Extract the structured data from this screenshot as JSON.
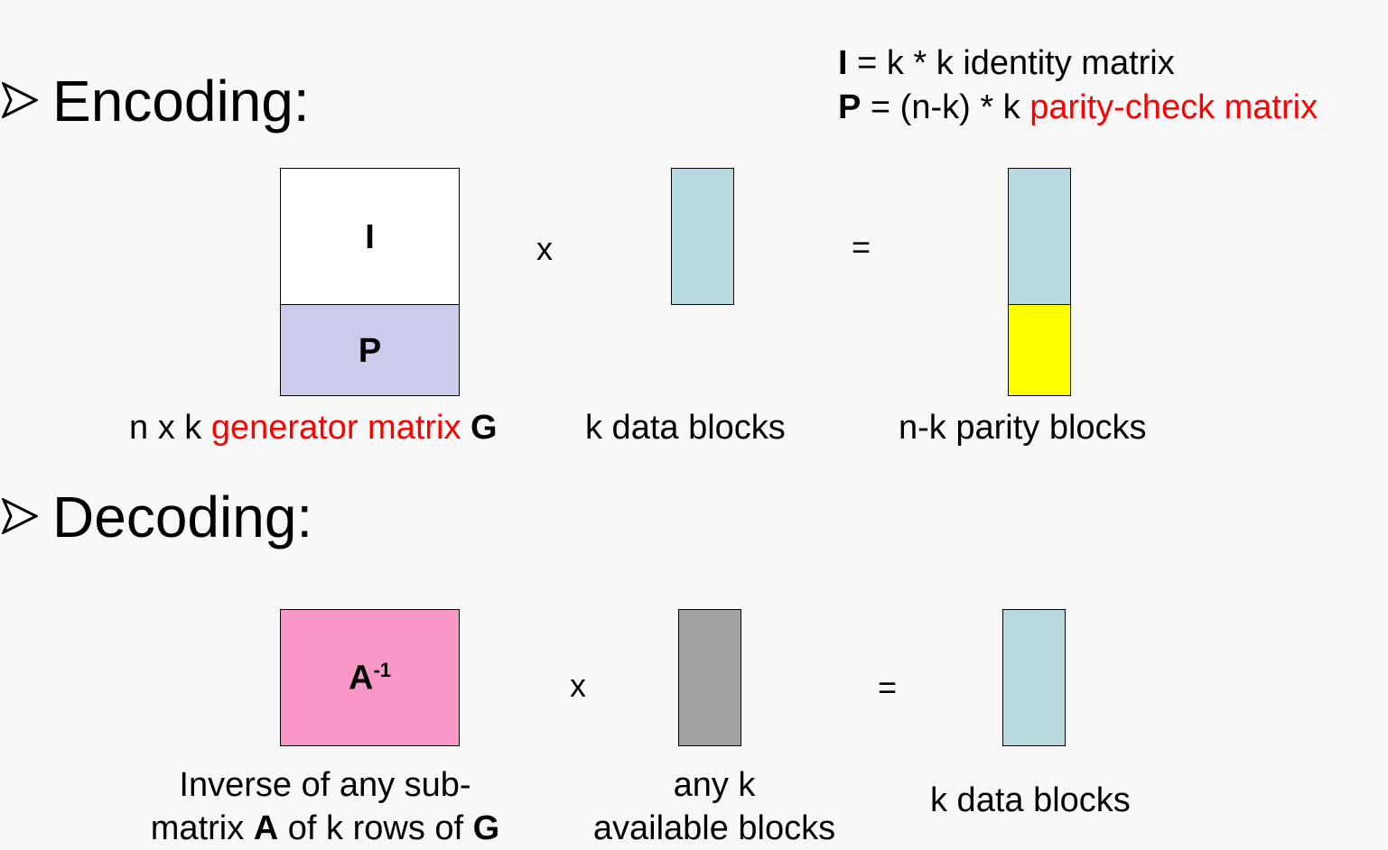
{
  "colors": {
    "identity": "#ffffff",
    "parity_matrix": "#cbcbec",
    "data_block": "#b8dade",
    "parity_block": "#ffff00",
    "inverse_matrix": "#f998c7",
    "available_block": "#a2a2a2",
    "highlight": "#ff0000"
  },
  "encoding": {
    "heading": "Encoding:",
    "legend": {
      "line1_symbol": "I",
      "line1_text": " = k * k identity matrix",
      "line2_symbol": "P",
      "line2_text": " = (n-k) * k ",
      "line2_highlight": "parity-check matrix"
    },
    "matrix_top_label": "I",
    "matrix_bottom_label": "P",
    "multiply_op": "x",
    "equals_op": "=",
    "caption_generator_prefix": "n x k ",
    "caption_generator_highlight": "generator matrix",
    "caption_generator_symbol": "G",
    "caption_data": "k data blocks",
    "caption_parity": "n-k parity blocks"
  },
  "decoding": {
    "heading": "Decoding:",
    "matrix_label": "A",
    "matrix_label_sup": "-1",
    "multiply_op": "x",
    "equals_op": "=",
    "caption_inverse_line1": "Inverse of any sub-",
    "caption_inverse_line2_a": "matrix ",
    "caption_inverse_line2_b": "A",
    "caption_inverse_line2_c": " of k rows of ",
    "caption_inverse_line2_d": "G",
    "caption_available_line1": "any k",
    "caption_available_line2": "available blocks",
    "caption_result": "k data blocks"
  }
}
